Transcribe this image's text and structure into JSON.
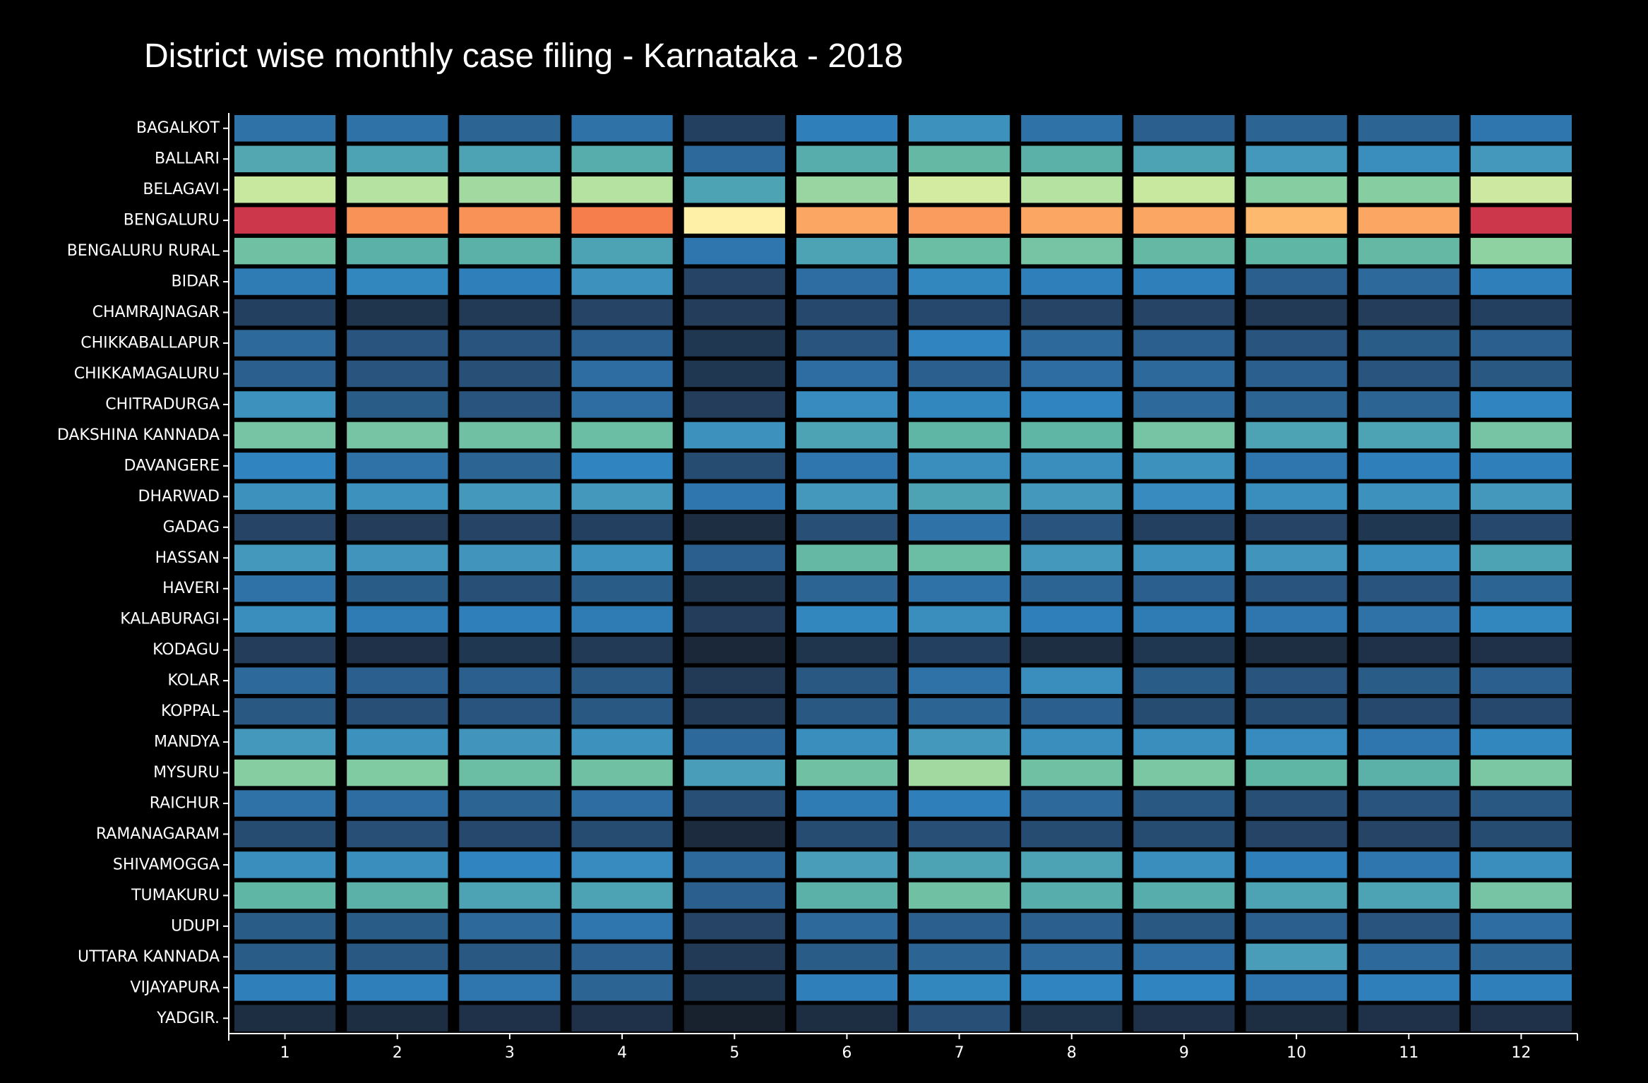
{
  "chart_data": {
    "type": "heatmap",
    "title": "District wise monthly case filing - Karnataka - 2018",
    "x_categories": [
      "1",
      "2",
      "3",
      "4",
      "5",
      "6",
      "7",
      "8",
      "9",
      "10",
      "11",
      "12"
    ],
    "y_categories": [
      "BAGALKOT",
      "BALLARI",
      "BELAGAVI",
      "BENGALURU",
      "BENGALURU RURAL",
      "BIDAR",
      "CHAMRAJNAGAR",
      "CHIKKABALLAPUR",
      "CHIKKAMAGALURU",
      "CHITRADURGA",
      "DAKSHINA KANNADA",
      "DAVANGERE",
      "DHARWAD",
      "GADAG",
      "HASSAN",
      "HAVERI",
      "KALABURAGI",
      "KODAGU",
      "KOLAR",
      "KOPPAL",
      "MANDYA",
      "MYSURU",
      "RAICHUR",
      "RAMANAGARAM",
      "SHIVAMOGGA",
      "TUMAKURU",
      "UDUPI",
      "UTTARA KANNADA",
      "VIJAYAPURA",
      "YADGIR."
    ],
    "color_scale": "Spectral (reversed) on dark background: dark navy = low, blue, teal, green, yellow, orange, red = high",
    "relative_intensity_0_to_1": [
      [
        0.3,
        0.3,
        0.27,
        0.3,
        0.18,
        0.33,
        0.38,
        0.3,
        0.26,
        0.27,
        0.27,
        0.31
      ],
      [
        0.43,
        0.42,
        0.42,
        0.44,
        0.28,
        0.44,
        0.47,
        0.45,
        0.42,
        0.4,
        0.37,
        0.4
      ],
      [
        0.6,
        0.58,
        0.56,
        0.58,
        0.42,
        0.55,
        0.62,
        0.58,
        0.6,
        0.53,
        0.53,
        0.61
      ],
      [
        0.98,
        0.82,
        0.82,
        0.84,
        0.7,
        0.8,
        0.81,
        0.8,
        0.8,
        0.78,
        0.8,
        0.98
      ],
      [
        0.49,
        0.45,
        0.45,
        0.42,
        0.31,
        0.42,
        0.48,
        0.5,
        0.47,
        0.46,
        0.47,
        0.54
      ],
      [
        0.32,
        0.35,
        0.33,
        0.38,
        0.19,
        0.29,
        0.35,
        0.33,
        0.33,
        0.26,
        0.28,
        0.33
      ],
      [
        0.18,
        0.14,
        0.16,
        0.19,
        0.17,
        0.2,
        0.2,
        0.19,
        0.19,
        0.16,
        0.17,
        0.18
      ],
      [
        0.28,
        0.23,
        0.23,
        0.26,
        0.15,
        0.23,
        0.34,
        0.28,
        0.26,
        0.23,
        0.25,
        0.26
      ],
      [
        0.26,
        0.23,
        0.22,
        0.29,
        0.15,
        0.29,
        0.26,
        0.29,
        0.28,
        0.26,
        0.23,
        0.24
      ],
      [
        0.38,
        0.25,
        0.23,
        0.29,
        0.17,
        0.36,
        0.35,
        0.34,
        0.28,
        0.27,
        0.27,
        0.34
      ],
      [
        0.5,
        0.5,
        0.49,
        0.48,
        0.38,
        0.42,
        0.46,
        0.46,
        0.5,
        0.42,
        0.42,
        0.5
      ],
      [
        0.34,
        0.3,
        0.27,
        0.34,
        0.21,
        0.31,
        0.37,
        0.37,
        0.38,
        0.31,
        0.33,
        0.33
      ],
      [
        0.38,
        0.38,
        0.4,
        0.4,
        0.31,
        0.4,
        0.42,
        0.4,
        0.36,
        0.37,
        0.38,
        0.4
      ],
      [
        0.19,
        0.17,
        0.19,
        0.18,
        0.12,
        0.22,
        0.3,
        0.23,
        0.18,
        0.19,
        0.15,
        0.2
      ],
      [
        0.4,
        0.39,
        0.39,
        0.38,
        0.26,
        0.47,
        0.48,
        0.4,
        0.38,
        0.39,
        0.37,
        0.42
      ],
      [
        0.3,
        0.25,
        0.22,
        0.25,
        0.14,
        0.27,
        0.3,
        0.27,
        0.26,
        0.23,
        0.23,
        0.27
      ],
      [
        0.37,
        0.32,
        0.33,
        0.32,
        0.17,
        0.35,
        0.37,
        0.33,
        0.32,
        0.31,
        0.3,
        0.35
      ],
      [
        0.17,
        0.13,
        0.15,
        0.16,
        0.1,
        0.14,
        0.18,
        0.12,
        0.15,
        0.12,
        0.13,
        0.13
      ],
      [
        0.28,
        0.26,
        0.26,
        0.24,
        0.16,
        0.24,
        0.3,
        0.37,
        0.25,
        0.23,
        0.25,
        0.26
      ],
      [
        0.24,
        0.22,
        0.23,
        0.24,
        0.16,
        0.24,
        0.27,
        0.26,
        0.21,
        0.21,
        0.2,
        0.2
      ],
      [
        0.4,
        0.38,
        0.39,
        0.38,
        0.28,
        0.37,
        0.4,
        0.37,
        0.37,
        0.36,
        0.31,
        0.35
      ],
      [
        0.53,
        0.52,
        0.48,
        0.49,
        0.41,
        0.49,
        0.56,
        0.49,
        0.51,
        0.46,
        0.45,
        0.51
      ],
      [
        0.3,
        0.29,
        0.27,
        0.29,
        0.22,
        0.32,
        0.33,
        0.28,
        0.24,
        0.22,
        0.23,
        0.24
      ],
      [
        0.21,
        0.22,
        0.2,
        0.21,
        0.11,
        0.21,
        0.22,
        0.21,
        0.21,
        0.19,
        0.19,
        0.21
      ],
      [
        0.37,
        0.37,
        0.34,
        0.36,
        0.28,
        0.41,
        0.42,
        0.42,
        0.37,
        0.33,
        0.31,
        0.37
      ],
      [
        0.46,
        0.45,
        0.42,
        0.42,
        0.26,
        0.45,
        0.49,
        0.44,
        0.44,
        0.42,
        0.42,
        0.5
      ],
      [
        0.25,
        0.25,
        0.28,
        0.31,
        0.19,
        0.28,
        0.26,
        0.26,
        0.24,
        0.26,
        0.23,
        0.29
      ],
      [
        0.25,
        0.24,
        0.24,
        0.26,
        0.16,
        0.25,
        0.27,
        0.28,
        0.29,
        0.41,
        0.28,
        0.27
      ],
      [
        0.33,
        0.33,
        0.31,
        0.27,
        0.15,
        0.33,
        0.35,
        0.34,
        0.34,
        0.31,
        0.33,
        0.33
      ],
      [
        0.12,
        0.12,
        0.13,
        0.13,
        0.07,
        0.12,
        0.22,
        0.14,
        0.13,
        0.12,
        0.13,
        0.13
      ]
    ]
  }
}
